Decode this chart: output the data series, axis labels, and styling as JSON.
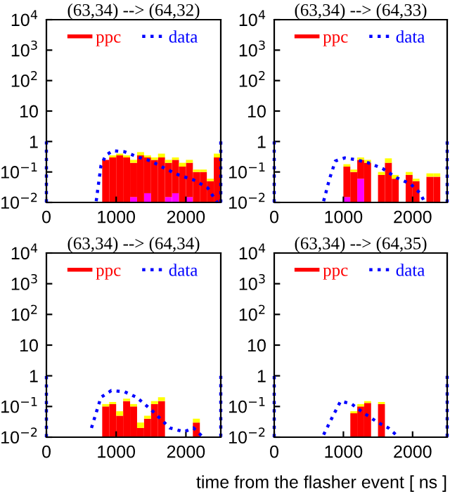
{
  "chart_data": [
    {
      "type": "bar",
      "stacked": true,
      "title": "(63,34) --> (64,32)",
      "xlim": [
        0,
        2500
      ],
      "ylim": [
        0.01,
        10000
      ],
      "xticks": [
        0,
        1000,
        2000
      ],
      "yticks": [
        {
          "value": 0.01,
          "label": "10$^{−2}$"
        },
        {
          "value": 0.1,
          "label": "10$^{−1}$"
        },
        {
          "value": 1,
          "label": "1"
        },
        {
          "value": 10,
          "label": "10"
        },
        {
          "value": 100,
          "label": "10$^{2}$"
        },
        {
          "value": 1000,
          "label": "10$^{3}$"
        },
        {
          "value": 10000,
          "label": "10$^{4}$"
        }
      ],
      "log": true,
      "legend": "top",
      "grid": false,
      "x": [
        850,
        950,
        1050,
        1150,
        1250,
        1350,
        1450,
        1550,
        1650,
        1750,
        1850,
        1950,
        2050,
        2150,
        2250,
        2350,
        2450
      ],
      "series": [
        {
          "color": "#ff00ff",
          "values": [
            null,
            null,
            null,
            null,
            0.015,
            null,
            0.02,
            null,
            null,
            0.015,
            0.02,
            null,
            0.015,
            null,
            null,
            null,
            null
          ]
        },
        {
          "name": "ppc",
          "type": "bar",
          "color": "#ff0000",
          "values": [
            0.25,
            0.3,
            0.35,
            0.3,
            0.185,
            0.35,
            0.28,
            0.25,
            0.3,
            0.185,
            0.23,
            0.15,
            0.185,
            0.1,
            0.1,
            0.05,
            0.3
          ]
        },
        {
          "color": "#ffff00",
          "values": [
            null,
            0.05,
            0.05,
            0.05,
            0.05,
            0.1,
            0.05,
            0.05,
            0.1,
            0.05,
            0.05,
            0.05,
            0.05,
            0.02,
            0.02,
            0.01,
            0.1
          ]
        },
        {
          "name": "data",
          "type": "line",
          "color": "#0000ff",
          "line_style": "dotted",
          "x": [
            0,
            0,
            null,
            714,
            782,
            850,
            952,
            1122,
            1293,
            1497,
            1700,
            1905,
            2109,
            2313,
            2415,
            2450,
            null,
            2500,
            2500
          ],
          "values": [
            0.01,
            1,
            null,
            0.011,
            0.16,
            0.35,
            0.5,
            0.46,
            0.32,
            0.23,
            0.13,
            0.078,
            0.055,
            0.03,
            0.013,
            0.01,
            null,
            1,
            0.01
          ]
        }
      ]
    },
    {
      "type": "bar",
      "stacked": true,
      "title": "(63,34) --> (64,33)",
      "xlim": [
        0,
        2500
      ],
      "ylim": [
        0.01,
        10000
      ],
      "xticks": [
        0,
        1000,
        2000
      ],
      "yticks": [
        {
          "value": 0.01,
          "label": "10$^{−2}$"
        },
        {
          "value": 0.1,
          "label": "10$^{−1}$"
        },
        {
          "value": 1,
          "label": "1"
        },
        {
          "value": 10,
          "label": "10"
        },
        {
          "value": 100,
          "label": "10$^{2}$"
        },
        {
          "value": 1000,
          "label": "10$^{3}$"
        },
        {
          "value": 10000,
          "label": "10$^{4}$"
        }
      ],
      "log": true,
      "legend": "top",
      "grid": false,
      "x": [
        1050,
        1150,
        1250,
        1350,
        1550,
        1650,
        1750,
        1950,
        2050,
        2250,
        2350
      ],
      "series": [
        {
          "color": "#ff00ff",
          "values": [
            0.015,
            null,
            0.06,
            null,
            null,
            null,
            null,
            null,
            null,
            null,
            null
          ]
        },
        {
          "name": "ppc",
          "type": "bar",
          "color": "#ff0000",
          "values": [
            0.135,
            0.1,
            0.19,
            0.2,
            0.08,
            0.2,
            0.06,
            0.08,
            0.05,
            0.07,
            0.07
          ]
        },
        {
          "color": "#ffff00",
          "values": [
            0.03,
            0.02,
            0.05,
            0.05,
            0.02,
            0.08,
            0.02,
            0.02,
            0.01,
            0.02,
            0.02
          ]
        },
        {
          "name": "data",
          "type": "line",
          "color": "#0000ff",
          "line_style": "dotted",
          "x": [
            0,
            0,
            null,
            714,
            800,
            884,
            1020,
            1190,
            1360,
            1565,
            1769,
            1973,
            2109,
            2177,
            null,
            2500,
            2500
          ],
          "values": [
            0.01,
            1,
            null,
            0.011,
            0.06,
            0.23,
            0.29,
            0.25,
            0.2,
            0.13,
            0.065,
            0.04,
            0.02,
            0.01,
            null,
            1,
            0.01
          ]
        }
      ]
    },
    {
      "type": "bar",
      "stacked": true,
      "title": "(63,34) --> (64,34)",
      "xlim": [
        0,
        2500
      ],
      "ylim": [
        0.01,
        10000
      ],
      "xticks": [
        0,
        1000,
        2000
      ],
      "yticks": [
        {
          "value": 0.01,
          "label": "10$^{−2}$"
        },
        {
          "value": 0.1,
          "label": "10$^{−1}$"
        },
        {
          "value": 1,
          "label": "1"
        },
        {
          "value": 10,
          "label": "10"
        },
        {
          "value": 100,
          "label": "10$^{2}$"
        },
        {
          "value": 1000,
          "label": "10$^{3}$"
        },
        {
          "value": 10000,
          "label": "10$^{4}$"
        }
      ],
      "log": true,
      "legend": "top",
      "grid": false,
      "x": [
        850,
        950,
        1050,
        1150,
        1250,
        1350,
        1450,
        1550,
        1650,
        2150
      ],
      "series": [
        {
          "name": "ppc",
          "type": "bar",
          "color": "#ff0000",
          "values": [
            0.1,
            0.12,
            0.05,
            0.15,
            0.1,
            0.02,
            0.04,
            0.12,
            0.15,
            0.03
          ]
        },
        {
          "color": "#ffff00",
          "values": [
            0.02,
            0.02,
            0.02,
            0.03,
            0.02,
            0.01,
            0.01,
            0.03,
            0.05,
            0.01
          ]
        },
        {
          "name": "data",
          "type": "line",
          "color": "#0000ff",
          "line_style": "dotted",
          "x": [
            0,
            0,
            null,
            646,
            782,
            930,
            1122,
            1293,
            1497,
            1633,
            1769,
            1973,
            2109,
            2245,
            null,
            2500,
            2500
          ],
          "values": [
            0.01,
            1,
            null,
            0.02,
            0.2,
            0.33,
            0.3,
            0.2,
            0.08,
            0.04,
            0.02,
            0.015,
            0.02,
            0.01,
            null,
            1,
            0.01
          ]
        }
      ]
    },
    {
      "type": "bar",
      "stacked": true,
      "title": "(63,34) --> (64,35)",
      "xlim": [
        0,
        2500
      ],
      "ylim": [
        0.01,
        10000
      ],
      "xticks": [
        0,
        1000,
        2000
      ],
      "yticks": [
        {
          "value": 0.01,
          "label": "10$^{−2}$"
        },
        {
          "value": 0.1,
          "label": "10$^{−1}$"
        },
        {
          "value": 1,
          "label": "1"
        },
        {
          "value": 10,
          "label": "10"
        },
        {
          "value": 100,
          "label": "10$^{2}$"
        },
        {
          "value": 1000,
          "label": "10$^{3}$"
        },
        {
          "value": 10000,
          "label": "10$^{4}$"
        }
      ],
      "log": true,
      "legend": "top",
      "grid": false,
      "xlabel": "time from the flasher event [ ns ]",
      "x": [
        1150,
        1250,
        1350,
        1550
      ],
      "series": [
        {
          "name": "ppc",
          "type": "bar",
          "color": "#ff0000",
          "values": [
            0.06,
            0.1,
            0.13,
            0.12
          ]
        },
        {
          "color": "#ffff00",
          "values": [
            0.01,
            0.02,
            0.02,
            0.02
          ]
        },
        {
          "name": "data",
          "type": "line",
          "color": "#0000ff",
          "line_style": "dotted",
          "x": [
            0,
            0,
            null,
            714,
            850,
            960,
            1120,
            1300,
            1500,
            1650,
            1800,
            null,
            2500,
            2500
          ],
          "values": [
            0.01,
            1,
            null,
            0.012,
            0.05,
            0.15,
            0.12,
            0.06,
            0.03,
            0.02,
            0.01,
            null,
            1,
            0.01
          ]
        }
      ]
    }
  ]
}
